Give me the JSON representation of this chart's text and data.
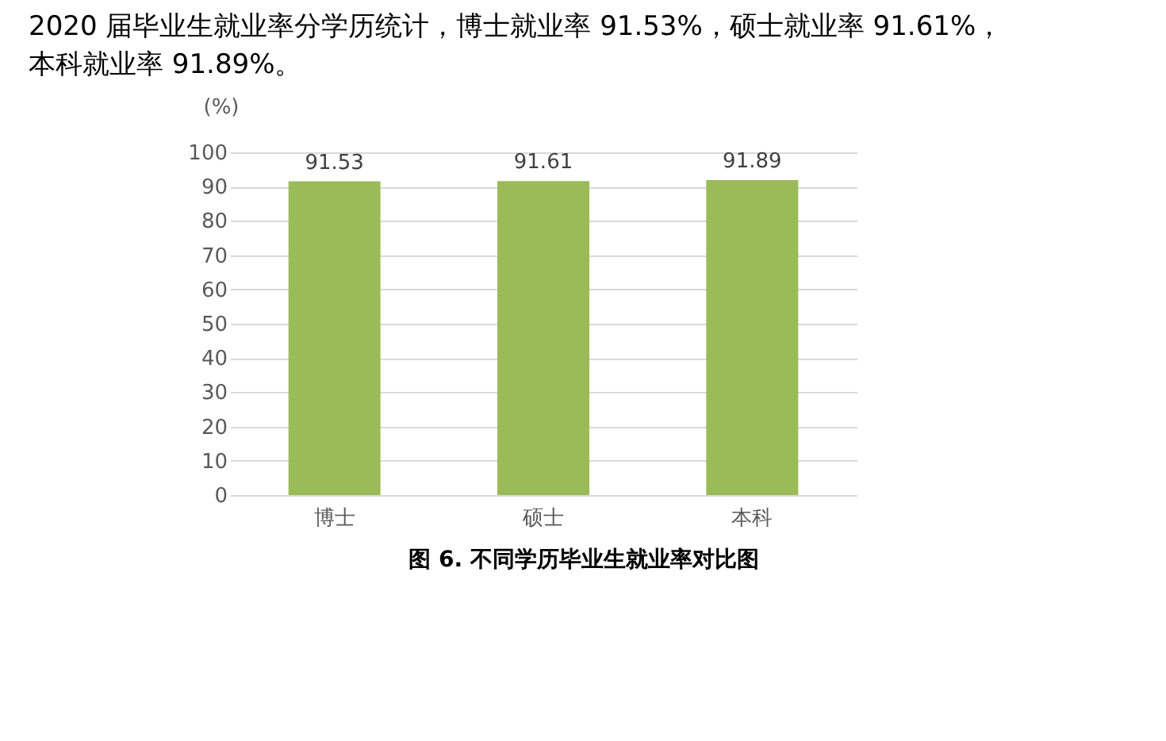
{
  "chart_data": {
    "type": "bar",
    "title": "2020 届毕业生就业率分学历统计，博士就业率 91.53%，硕士就业率 91.61%，本科就业率 91.89%。",
    "ylabel": "(%)",
    "annotations": [
      "图 6. 不同学历毕业生就业率对比图"
    ],
    "categories": [
      "博士",
      "硕士",
      "本科"
    ],
    "values": [
      91.53,
      91.61,
      91.89
    ],
    "color": "#9bbb59",
    "ylim": [
      0,
      100
    ],
    "yticks": [
      0,
      10,
      20,
      30,
      40,
      50,
      60,
      70,
      80,
      90,
      100
    ],
    "grid": "y",
    "data_labels": true
  }
}
